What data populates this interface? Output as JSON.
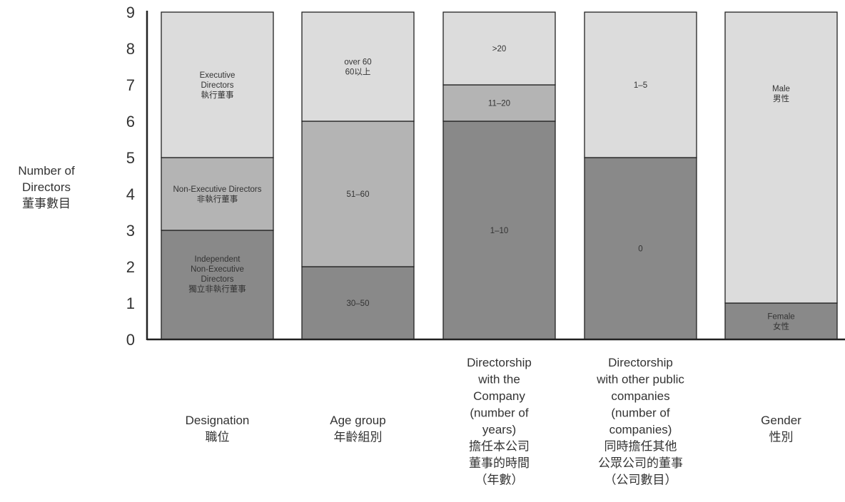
{
  "chart_data": {
    "type": "bar",
    "stacked": true,
    "ylabel": [
      "Number of",
      "Directors",
      "董事數目"
    ],
    "ylim": [
      0,
      9
    ],
    "yticks": [
      0,
      1,
      2,
      3,
      4,
      5,
      6,
      7,
      8,
      9
    ],
    "grid": false,
    "legend": "none",
    "categories": [
      {
        "label": [
          "Designation",
          "職位"
        ]
      },
      {
        "label": [
          "Age group",
          "年齡組別"
        ]
      },
      {
        "label": [
          "Directorship",
          "with the",
          "Company",
          "(number of",
          "years)",
          "擔任本公司",
          "董事的時間",
          "（年數）"
        ]
      },
      {
        "label": [
          "Directorship",
          "with other public",
          "companies",
          "(number of",
          "companies)",
          "同時擔任其他",
          "公眾公司的董事",
          "（公司數目）"
        ]
      },
      {
        "label": [
          "Gender",
          "性別"
        ]
      }
    ],
    "bars": [
      {
        "segments": [
          {
            "value": 3,
            "label": [
              "Independent",
              "Non-Executive",
              "Directors",
              "獨立非執行董事"
            ],
            "color": "#898989"
          },
          {
            "value": 2,
            "label": [
              "Non-Executive Directors",
              "非執行董事"
            ],
            "color": "#b4b4b4"
          },
          {
            "value": 4,
            "label": [
              "Executive",
              "Directors",
              "執行董事"
            ],
            "color": "#dcdcdc"
          }
        ]
      },
      {
        "segments": [
          {
            "value": 2,
            "label": [
              "30–50"
            ],
            "color": "#898989"
          },
          {
            "value": 4,
            "label": [
              "51–60"
            ],
            "color": "#b4b4b4"
          },
          {
            "value": 3,
            "label": [
              "over 60",
              "60以上"
            ],
            "color": "#dcdcdc"
          }
        ]
      },
      {
        "segments": [
          {
            "value": 6,
            "label": [
              "1–10"
            ],
            "color": "#898989"
          },
          {
            "value": 1,
            "label": [
              "11–20"
            ],
            "color": "#b4b4b4"
          },
          {
            "value": 2,
            "label": [
              ">20"
            ],
            "color": "#dcdcdc"
          }
        ]
      },
      {
        "segments": [
          {
            "value": 5,
            "label": [
              "0"
            ],
            "color": "#898989"
          },
          {
            "value": 4,
            "label": [
              "1–5"
            ],
            "color": "#dcdcdc"
          }
        ]
      },
      {
        "segments": [
          {
            "value": 1,
            "label": [
              "Female",
              "女性"
            ],
            "color": "#898989"
          },
          {
            "value": 8,
            "label": [
              "Male",
              "男性"
            ],
            "color": "#dcdcdc"
          }
        ]
      }
    ]
  }
}
